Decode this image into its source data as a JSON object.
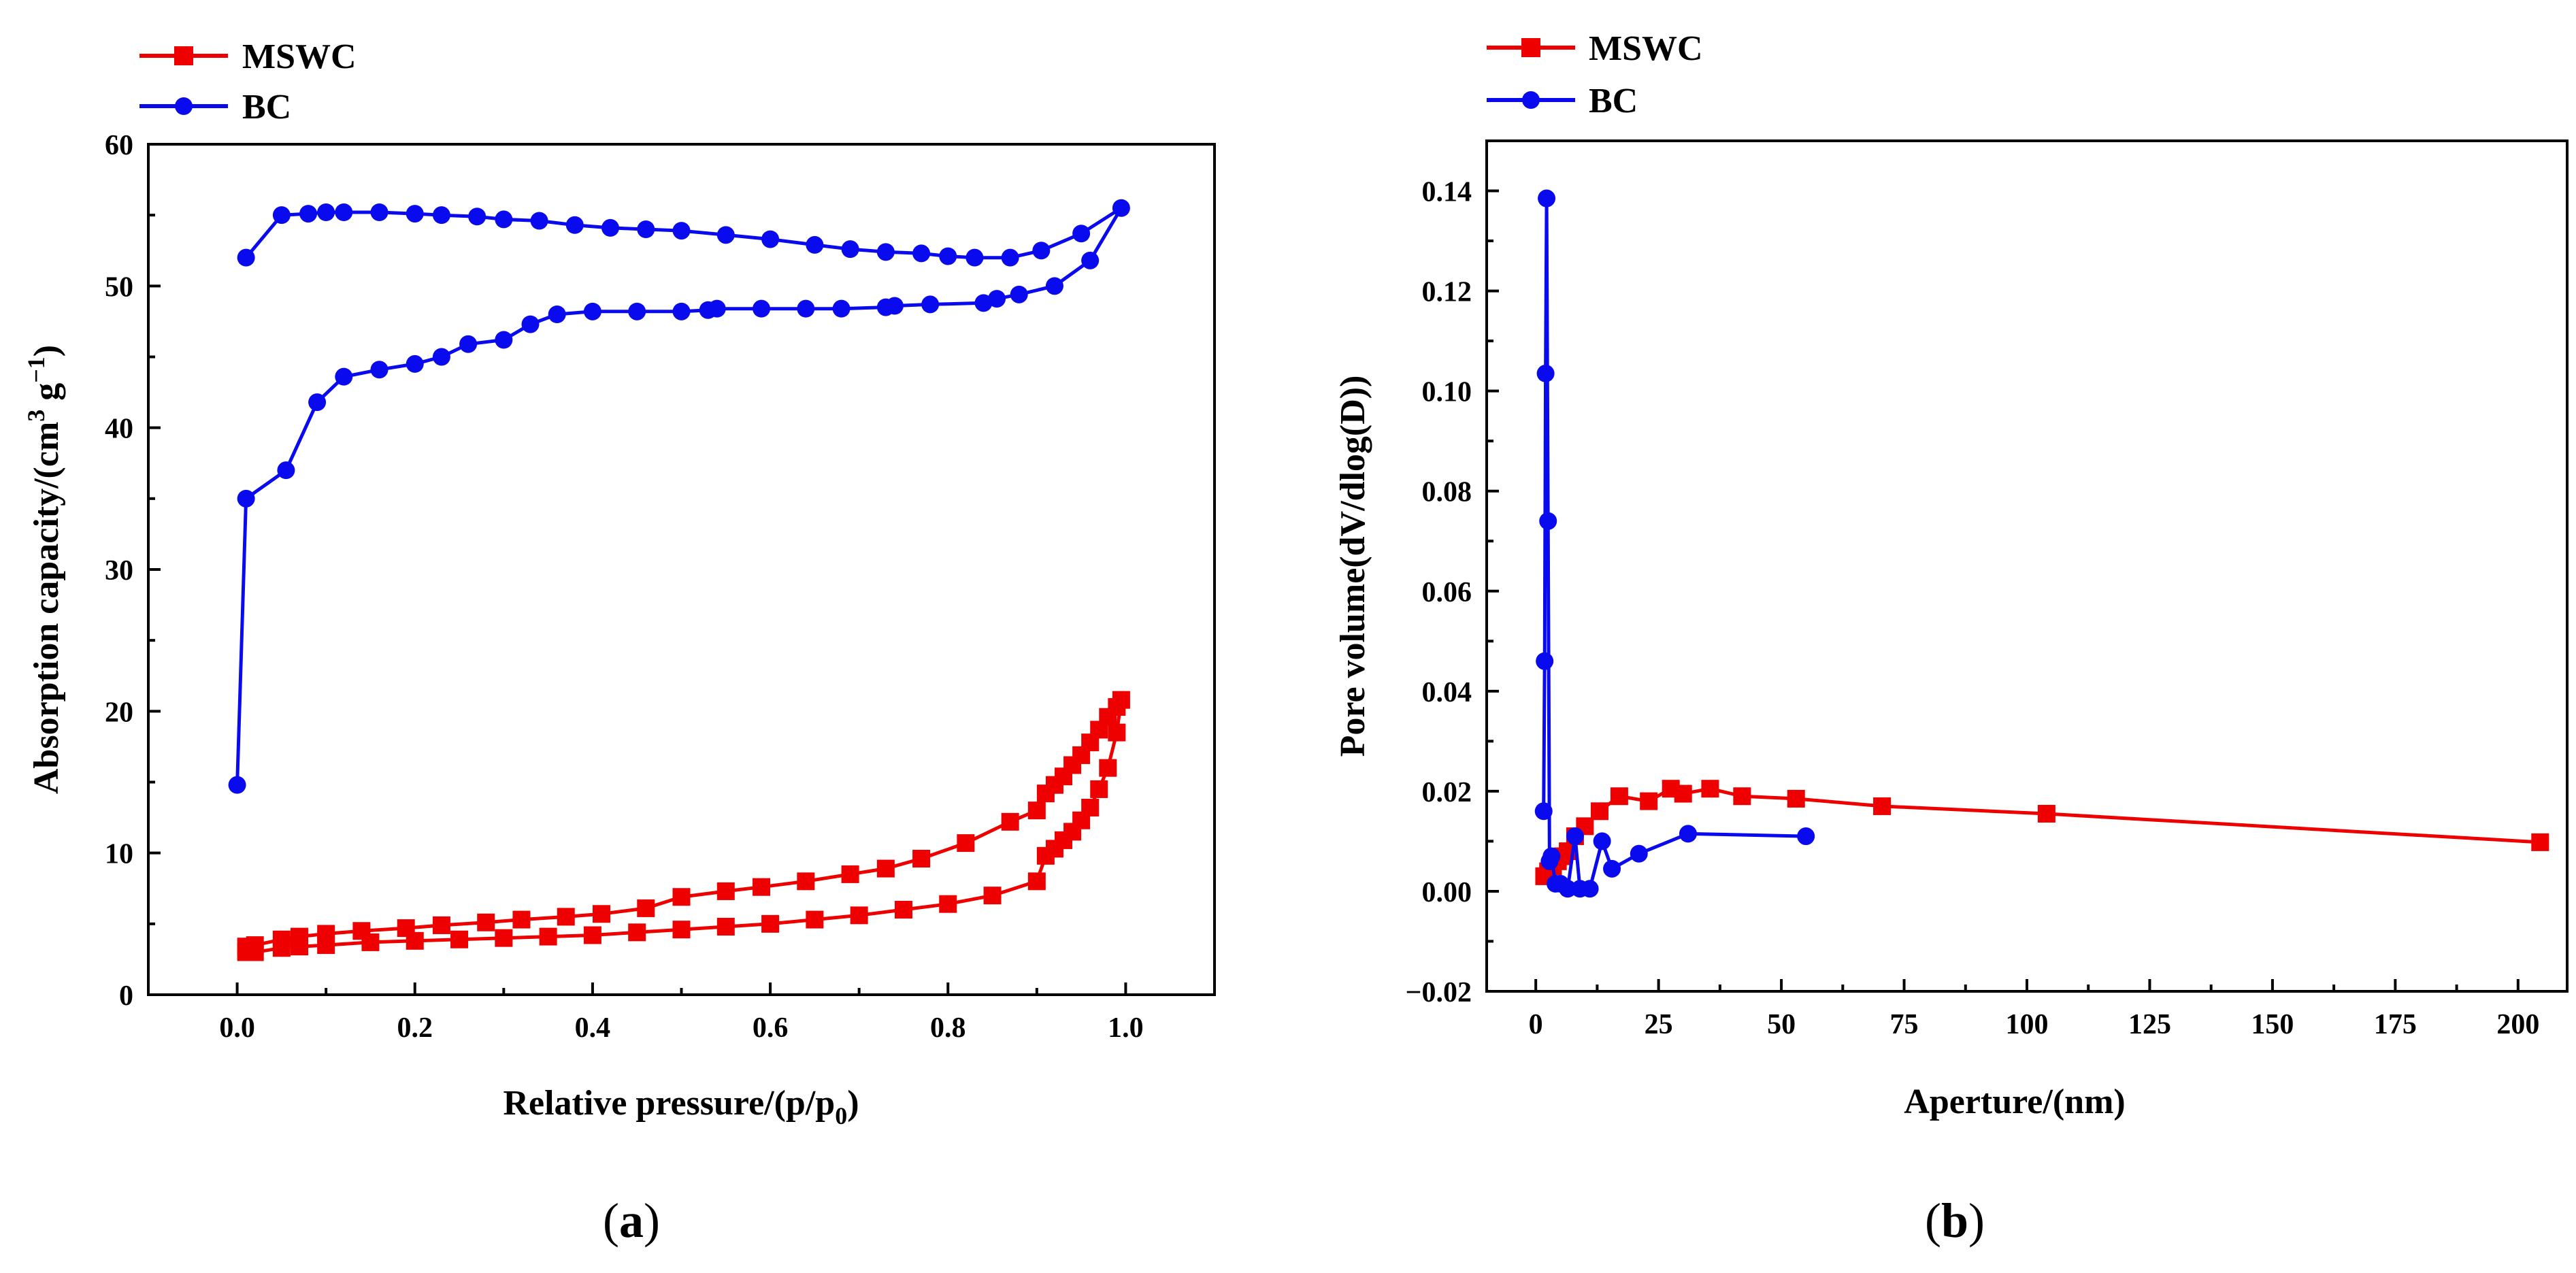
{
  "colors": {
    "MSWC": "#ee0000",
    "BC": "#0a0aee",
    "axis": "#000000"
  },
  "chart_data": [
    {
      "id": "a",
      "type": "line",
      "caption": {
        "open": "(",
        "letter": "a",
        "close": ")"
      },
      "xlabel": "Relative pressure/(p/p",
      "xlabel_sub": "0",
      "xlabel_end": ")",
      "ylabel": "Absorption capacity/(cm",
      "ylabel_sup1": "3",
      "ylabel_mid": " g",
      "ylabel_sup2": "−1",
      "ylabel_end": ")",
      "xlim": [
        -0.1,
        1.1
      ],
      "ylim": [
        0,
        60
      ],
      "xticks": [
        0.0,
        0.2,
        0.4,
        0.6,
        0.8,
        1.0
      ],
      "xtick_labels": [
        "0.0",
        "0.2",
        "0.4",
        "0.6",
        "0.8",
        "1.0"
      ],
      "yticks": [
        0,
        10,
        20,
        30,
        40,
        50,
        60
      ],
      "ytick_labels": [
        "0",
        "10",
        "20",
        "30",
        "40",
        "50",
        "60"
      ],
      "legend": [
        "MSWC",
        "BC"
      ],
      "series": [
        {
          "name": "MSWC",
          "marker": "square",
          "color_key": "MSWC",
          "x": [
            0.01,
            0.02,
            0.05,
            0.07,
            0.1,
            0.15,
            0.2,
            0.25,
            0.3,
            0.35,
            0.4,
            0.45,
            0.5,
            0.55,
            0.6,
            0.65,
            0.7,
            0.75,
            0.8,
            0.85,
            0.9,
            0.91,
            0.92,
            0.93,
            0.94,
            0.95,
            0.96,
            0.97,
            0.98,
            0.99,
            0.995,
            0.99,
            0.98,
            0.97,
            0.96,
            0.95,
            0.94,
            0.93,
            0.92,
            0.91,
            0.9,
            0.87,
            0.82,
            0.77,
            0.73,
            0.69,
            0.64,
            0.59,
            0.55,
            0.5,
            0.46,
            0.41,
            0.37,
            0.32,
            0.28,
            0.23,
            0.19,
            0.14,
            0.1,
            0.07,
            0.05,
            0.02,
            0.01
          ],
          "y": [
            3.0,
            3.0,
            3.3,
            3.4,
            3.5,
            3.7,
            3.8,
            3.9,
            4.0,
            4.1,
            4.2,
            4.4,
            4.6,
            4.8,
            5.0,
            5.3,
            5.6,
            6.0,
            6.4,
            7.0,
            8.0,
            9.8,
            10.3,
            10.9,
            11.5,
            12.3,
            13.2,
            14.5,
            16.0,
            18.5,
            20.8,
            20.3,
            19.6,
            18.7,
            17.8,
            16.9,
            16.2,
            15.4,
            14.8,
            14.2,
            13.0,
            12.2,
            10.7,
            9.6,
            8.9,
            8.5,
            8.0,
            7.6,
            7.3,
            6.9,
            6.1,
            5.7,
            5.5,
            5.3,
            5.1,
            4.9,
            4.7,
            4.5,
            4.3,
            4.1,
            3.9,
            3.5,
            3.4
          ]
        },
        {
          "name": "BC",
          "marker": "circle",
          "color_key": "BC",
          "x": [
            0.0,
            0.01,
            0.055,
            0.09,
            0.12,
            0.16,
            0.2,
            0.23,
            0.26,
            0.3,
            0.33,
            0.36,
            0.4,
            0.45,
            0.5,
            0.53,
            0.54,
            0.59,
            0.64,
            0.68,
            0.73,
            0.74,
            0.78,
            0.84,
            0.855,
            0.88,
            0.92,
            0.96,
            0.995,
            0.95,
            0.905,
            0.87,
            0.83,
            0.8,
            0.77,
            0.73,
            0.69,
            0.65,
            0.6,
            0.55,
            0.5,
            0.46,
            0.42,
            0.38,
            0.34,
            0.3,
            0.27,
            0.23,
            0.2,
            0.16,
            0.12,
            0.1,
            0.08,
            0.05,
            0.01
          ],
          "y": [
            14.8,
            35.0,
            37.0,
            41.8,
            43.6,
            44.1,
            44.5,
            45.0,
            45.9,
            46.2,
            47.3,
            48.0,
            48.2,
            48.2,
            48.2,
            48.3,
            48.4,
            48.4,
            48.4,
            48.4,
            48.5,
            48.6,
            48.7,
            48.8,
            49.1,
            49.4,
            50.0,
            51.8,
            55.5,
            53.7,
            52.5,
            52.0,
            52.0,
            52.1,
            52.3,
            52.4,
            52.6,
            52.9,
            53.3,
            53.6,
            53.9,
            54.0,
            54.1,
            54.3,
            54.6,
            54.7,
            54.9,
            55.0,
            55.1,
            55.2,
            55.2,
            55.2,
            55.1,
            55.0,
            52.0
          ]
        }
      ]
    },
    {
      "id": "b",
      "type": "line",
      "caption": {
        "open": "(",
        "letter": "b",
        "close": ")"
      },
      "xlabel": "Aperture/(nm)",
      "ylabel": "Pore volume(dV/dlog(D))",
      "xlim": [
        -10,
        210
      ],
      "ylim": [
        -0.02,
        0.15
      ],
      "xticks": [
        0,
        25,
        50,
        75,
        100,
        125,
        150,
        175,
        200
      ],
      "xtick_labels": [
        "0",
        "25",
        "50",
        "75",
        "100",
        "125",
        "150",
        "175",
        "200"
      ],
      "yticks": [
        -0.02,
        0.0,
        0.02,
        0.04,
        0.06,
        0.08,
        0.1,
        0.12,
        0.14
      ],
      "ytick_labels": [
        "−0.02",
        "0.00",
        "0.02",
        "0.04",
        "0.06",
        "0.08",
        "0.10",
        "0.12",
        "0.14"
      ],
      "legend": [
        "MSWC",
        "BC"
      ],
      "series": [
        {
          "name": "MSWC",
          "marker": "square",
          "color_key": "MSWC",
          "x": [
            1.7,
            2.5,
            3.5,
            4.5,
            5.5,
            6.5,
            8.0,
            10.0,
            13.0,
            17.0,
            23.0,
            27.5,
            30.0,
            35.5,
            42.0,
            53.0,
            70.5,
            104.0,
            204.5
          ],
          "y": [
            0.003,
            0.004,
            0.005,
            0.006,
            0.007,
            0.008,
            0.011,
            0.013,
            0.016,
            0.019,
            0.018,
            0.0205,
            0.0195,
            0.0205,
            0.019,
            0.0185,
            0.017,
            0.0155,
            0.0098
          ]
        },
        {
          "name": "BC",
          "marker": "circle",
          "color_key": "BC",
          "x": [
            1.6,
            1.8,
            2.0,
            2.2,
            2.5,
            2.8,
            3.2,
            4.0,
            5.0,
            6.5,
            8.0,
            9.0,
            11.0,
            13.5,
            15.5,
            21.0,
            31.0,
            55.0
          ],
          "y": [
            0.016,
            0.046,
            0.1035,
            0.1385,
            0.074,
            0.006,
            0.007,
            0.0015,
            0.0015,
            0.0005,
            0.011,
            0.0005,
            0.0005,
            0.01,
            0.0045,
            0.0075,
            0.0115,
            0.011
          ]
        }
      ]
    }
  ]
}
